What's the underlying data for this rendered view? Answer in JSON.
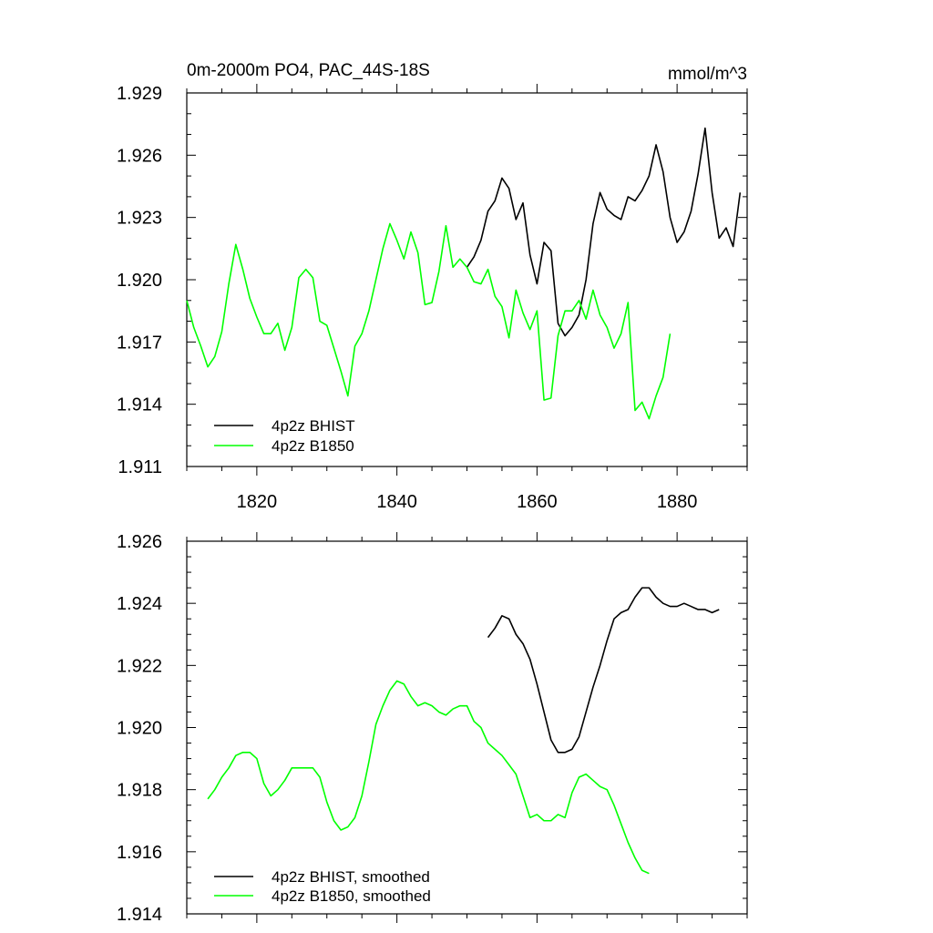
{
  "colors": {
    "bhist": "#000000",
    "b1850": "#00ff00",
    "frame": "#000000",
    "background": "#ffffff"
  },
  "chart_data": [
    {
      "type": "line",
      "title": "0m-2000m PO4, PAC_44S-18S",
      "units": "mmol/m^3",
      "xlim": [
        1810,
        1890
      ],
      "ylim": [
        1.911,
        1.929
      ],
      "x_ticks": [
        1820,
        1840,
        1860,
        1880
      ],
      "y_ticks": [
        1.911,
        1.914,
        1.917,
        1.92,
        1.923,
        1.926,
        1.929
      ],
      "y_tick_labels": [
        "1.911",
        "1.914",
        "1.917",
        "1.920",
        "1.923",
        "1.926",
        "1.929"
      ],
      "legend_position": "bottom-left",
      "grid": false,
      "series": [
        {
          "name": "4p2z BHIST",
          "color": "#000000",
          "x": [
            1850,
            1851,
            1852,
            1853,
            1854,
            1855,
            1856,
            1857,
            1858,
            1859,
            1860,
            1861,
            1862,
            1863,
            1864,
            1865,
            1866,
            1867,
            1868,
            1869,
            1870,
            1871,
            1872,
            1873,
            1874,
            1875,
            1876,
            1877,
            1878,
            1879,
            1880,
            1881,
            1882,
            1883,
            1884,
            1885,
            1886,
            1887,
            1888,
            1889
          ],
          "y": [
            1.9206,
            1.9211,
            1.9219,
            1.9233,
            1.9238,
            1.9249,
            1.9244,
            1.9229,
            1.9237,
            1.9212,
            1.9198,
            1.9218,
            1.9214,
            1.9179,
            1.9173,
            1.9177,
            1.9183,
            1.92,
            1.9227,
            1.9242,
            1.9234,
            1.9231,
            1.9229,
            1.924,
            1.9238,
            1.9243,
            1.925,
            1.9265,
            1.9252,
            1.923,
            1.9218,
            1.9223,
            1.9233,
            1.9251,
            1.9273,
            1.9242,
            1.922,
            1.9225,
            1.9216,
            1.9242
          ]
        },
        {
          "name": "4p2z B1850",
          "color": "#00ff00",
          "x": [
            1810,
            1811,
            1812,
            1813,
            1814,
            1815,
            1816,
            1817,
            1818,
            1819,
            1820,
            1821,
            1822,
            1823,
            1824,
            1825,
            1826,
            1827,
            1828,
            1829,
            1830,
            1831,
            1832,
            1833,
            1834,
            1835,
            1836,
            1837,
            1838,
            1839,
            1840,
            1841,
            1842,
            1843,
            1844,
            1845,
            1846,
            1847,
            1848,
            1849,
            1850,
            1851,
            1852,
            1853,
            1854,
            1855,
            1856,
            1857,
            1858,
            1859,
            1860,
            1861,
            1862,
            1863,
            1864,
            1865,
            1866,
            1867,
            1868,
            1869,
            1870,
            1871,
            1872,
            1873,
            1874,
            1875,
            1876,
            1877,
            1878,
            1879
          ],
          "y": [
            1.919,
            1.9177,
            1.9168,
            1.9158,
            1.9163,
            1.9175,
            1.9198,
            1.9217,
            1.9205,
            1.9191,
            1.9182,
            1.9174,
            1.9174,
            1.9179,
            1.9166,
            1.9177,
            1.9201,
            1.9205,
            1.9201,
            1.918,
            1.9178,
            1.9167,
            1.9156,
            1.9144,
            1.9168,
            1.9174,
            1.9185,
            1.92,
            1.9215,
            1.9227,
            1.9219,
            1.921,
            1.9223,
            1.9213,
            1.9188,
            1.9189,
            1.9204,
            1.9226,
            1.9206,
            1.921,
            1.9206,
            1.9199,
            1.9198,
            1.9205,
            1.9192,
            1.9187,
            1.9172,
            1.9195,
            1.9184,
            1.9176,
            1.9185,
            1.9142,
            1.9143,
            1.9173,
            1.9185,
            1.9185,
            1.919,
            1.9181,
            1.9195,
            1.9183,
            1.9177,
            1.9167,
            1.9174,
            1.9189,
            1.9137,
            1.9141,
            1.9133,
            1.9144,
            1.9153,
            1.9174
          ]
        }
      ]
    },
    {
      "type": "line",
      "xlim": [
        1810,
        1890
      ],
      "ylim": [
        1.914,
        1.926
      ],
      "x_ticks": [
        1820,
        1840,
        1860,
        1880
      ],
      "y_ticks": [
        1.914,
        1.916,
        1.918,
        1.92,
        1.922,
        1.924,
        1.926
      ],
      "y_tick_labels": [
        "1.914",
        "1.916",
        "1.918",
        "1.920",
        "1.922",
        "1.924",
        "1.926"
      ],
      "legend_position": "bottom-left",
      "grid": false,
      "series": [
        {
          "name": "4p2z BHIST, smoothed",
          "color": "#000000",
          "x": [
            1853,
            1854,
            1855,
            1856,
            1857,
            1858,
            1859,
            1860,
            1861,
            1862,
            1863,
            1864,
            1865,
            1866,
            1867,
            1868,
            1869,
            1870,
            1871,
            1872,
            1873,
            1874,
            1875,
            1876,
            1877,
            1878,
            1879,
            1880,
            1881,
            1882,
            1883,
            1884,
            1885,
            1886
          ],
          "y": [
            1.9229,
            1.9232,
            1.9236,
            1.9235,
            1.923,
            1.9227,
            1.9222,
            1.9214,
            1.9205,
            1.9196,
            1.9192,
            1.9192,
            1.9193,
            1.9197,
            1.9205,
            1.9213,
            1.922,
            1.9228,
            1.9235,
            1.9237,
            1.9238,
            1.9242,
            1.9245,
            1.9245,
            1.9242,
            1.924,
            1.9239,
            1.9239,
            1.924,
            1.9239,
            1.9238,
            1.9238,
            1.9237,
            1.9238
          ]
        },
        {
          "name": "4p2z B1850, smoothed",
          "color": "#00ff00",
          "x": [
            1813,
            1814,
            1815,
            1816,
            1817,
            1818,
            1819,
            1820,
            1821,
            1822,
            1823,
            1824,
            1825,
            1826,
            1827,
            1828,
            1829,
            1830,
            1831,
            1832,
            1833,
            1834,
            1835,
            1836,
            1837,
            1838,
            1839,
            1840,
            1841,
            1842,
            1843,
            1844,
            1845,
            1846,
            1847,
            1848,
            1849,
            1850,
            1851,
            1852,
            1853,
            1854,
            1855,
            1856,
            1857,
            1858,
            1859,
            1860,
            1861,
            1862,
            1863,
            1864,
            1865,
            1866,
            1867,
            1868,
            1869,
            1870,
            1871,
            1872,
            1873,
            1874,
            1875,
            1876
          ],
          "y": [
            1.9177,
            1.918,
            1.9184,
            1.9187,
            1.9191,
            1.9192,
            1.9192,
            1.919,
            1.9182,
            1.9178,
            1.918,
            1.9183,
            1.9187,
            1.9187,
            1.9187,
            1.9187,
            1.9184,
            1.9176,
            1.917,
            1.9167,
            1.9168,
            1.9171,
            1.9178,
            1.9189,
            1.9201,
            1.9207,
            1.9212,
            1.9215,
            1.9214,
            1.921,
            1.9207,
            1.9208,
            1.9207,
            1.9205,
            1.9204,
            1.9206,
            1.9207,
            1.9207,
            1.9202,
            1.92,
            1.9195,
            1.9193,
            1.9191,
            1.9188,
            1.9185,
            1.9178,
            1.9171,
            1.9172,
            1.917,
            1.917,
            1.9172,
            1.9171,
            1.9179,
            1.9184,
            1.9185,
            1.9183,
            1.9181,
            1.918,
            1.9175,
            1.9169,
            1.9163,
            1.9158,
            1.9154,
            1.9153
          ]
        }
      ]
    }
  ]
}
